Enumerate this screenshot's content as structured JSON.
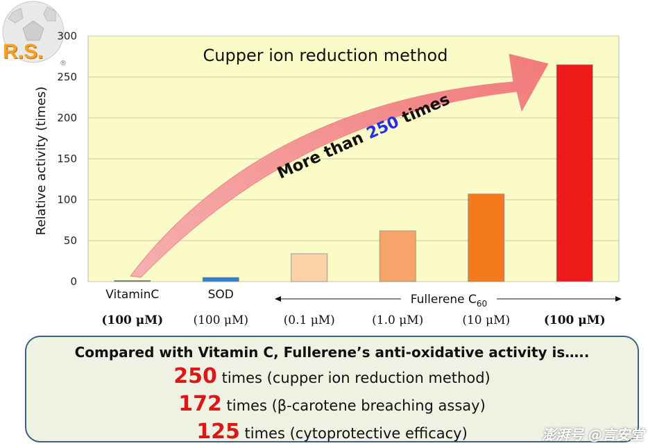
{
  "chart_data": {
    "type": "bar",
    "title": "Cupper ion reduction method",
    "ylabel": "Relative activity (times)",
    "ylim": [
      0,
      300
    ],
    "yticks": [
      0,
      50,
      100,
      150,
      200,
      250,
      300
    ],
    "categories": [
      "VitaminC",
      "SOD",
      "",
      "",
      "",
      ""
    ],
    "concentrations": [
      "(100 μM)",
      "(100 μM)",
      "(0.1 μM)",
      "(1.0 μM)",
      "(10 μM)",
      "(100 μM)"
    ],
    "concentration_bold": [
      true,
      false,
      false,
      false,
      false,
      true
    ],
    "values": [
      1,
      5,
      34,
      62,
      107,
      265
    ],
    "colors": [
      "#2e9a3a",
      "#2d7fd0",
      "#f9d2a8",
      "#f6a46a",
      "#f57a1e",
      "#ee1a1a"
    ],
    "group_label": "Fullerene C",
    "group_label_sub": "60",
    "annotation": {
      "prefix": "More than ",
      "number": "250",
      "suffix": " times"
    },
    "plot_background": "#fbfbc8",
    "arrow_color": "#f58a8a"
  },
  "summary": {
    "heading": "Compared with Vitamin C,  Fullerene’s anti-oxidative activity is…..",
    "rows": [
      {
        "number": "250",
        "text": " times (cupper ion reduction method)"
      },
      {
        "number": "172",
        "text": " times (β-carotene breaching assay)"
      },
      {
        "number": "125",
        "text": " times (cytoprotective efficacy)"
      }
    ]
  },
  "logo": {
    "text": "R.S.",
    "reg": "®"
  },
  "watermark": "澎湃号 @言安堂"
}
